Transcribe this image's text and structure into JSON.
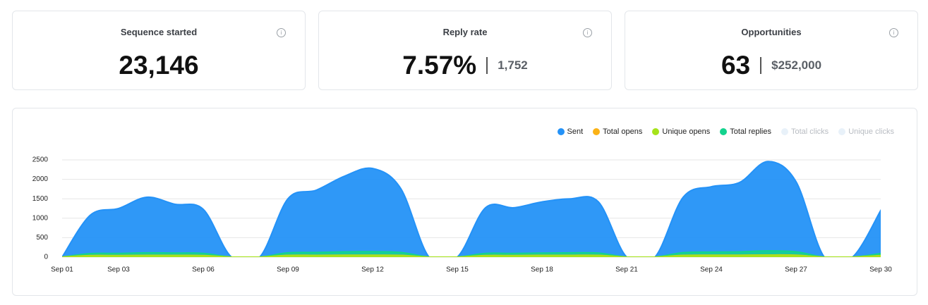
{
  "cards": [
    {
      "title": "Sequence started",
      "value": "23,146"
    },
    {
      "title": "Reply rate",
      "value": "7.57%",
      "secondary": "1,752"
    },
    {
      "title": "Opportunities",
      "value": "63",
      "secondary": "$252,000"
    }
  ],
  "chart_data": {
    "type": "area",
    "categories": [
      "Sep 01",
      null,
      "Sep 03",
      null,
      null,
      "Sep 06",
      null,
      null,
      "Sep 09",
      null,
      null,
      "Sep 12",
      null,
      null,
      "Sep 15",
      null,
      null,
      "Sep 18",
      null,
      null,
      "Sep 21",
      null,
      null,
      "Sep 24",
      null,
      null,
      "Sep 27",
      null,
      null,
      "Sep 30"
    ],
    "series": [
      {
        "name": "Sent",
        "color": "#2492f7",
        "values": [
          0,
          1080,
          1250,
          1540,
          1360,
          1230,
          0,
          0,
          1500,
          1720,
          2080,
          2280,
          1760,
          0,
          0,
          1270,
          1270,
          1420,
          1500,
          1420,
          0,
          0,
          1540,
          1810,
          1920,
          2460,
          1940,
          0,
          0,
          1200
        ]
      },
      {
        "name": "Total opens",
        "color": "#fbb216",
        "values": [
          0,
          40,
          40,
          45,
          45,
          40,
          0,
          0,
          45,
          45,
          50,
          50,
          45,
          0,
          0,
          40,
          40,
          45,
          45,
          45,
          0,
          0,
          45,
          50,
          50,
          55,
          50,
          0,
          0,
          40
        ]
      },
      {
        "name": "Unique opens",
        "color": "#a6e31a",
        "values": [
          0,
          35,
          35,
          40,
          40,
          35,
          0,
          0,
          40,
          40,
          45,
          45,
          40,
          0,
          0,
          35,
          35,
          40,
          40,
          40,
          0,
          0,
          40,
          45,
          45,
          50,
          45,
          0,
          0,
          35
        ]
      },
      {
        "name": "Total replies",
        "color": "#13d38e",
        "values": [
          0,
          90,
          95,
          110,
          105,
          95,
          0,
          0,
          110,
          120,
          135,
          140,
          120,
          0,
          0,
          95,
          95,
          105,
          110,
          105,
          0,
          0,
          115,
          130,
          135,
          160,
          135,
          0,
          0,
          90
        ]
      },
      {
        "name": "Total clicks",
        "color": "#e8f1f9",
        "visible": false
      },
      {
        "name": "Unique clicks",
        "color": "#e8f1f9",
        "visible": false
      }
    ],
    "ylim": [
      0,
      2500
    ],
    "yticks": [
      0,
      500,
      1000,
      1500,
      2000,
      2500
    ],
    "grid": true
  }
}
